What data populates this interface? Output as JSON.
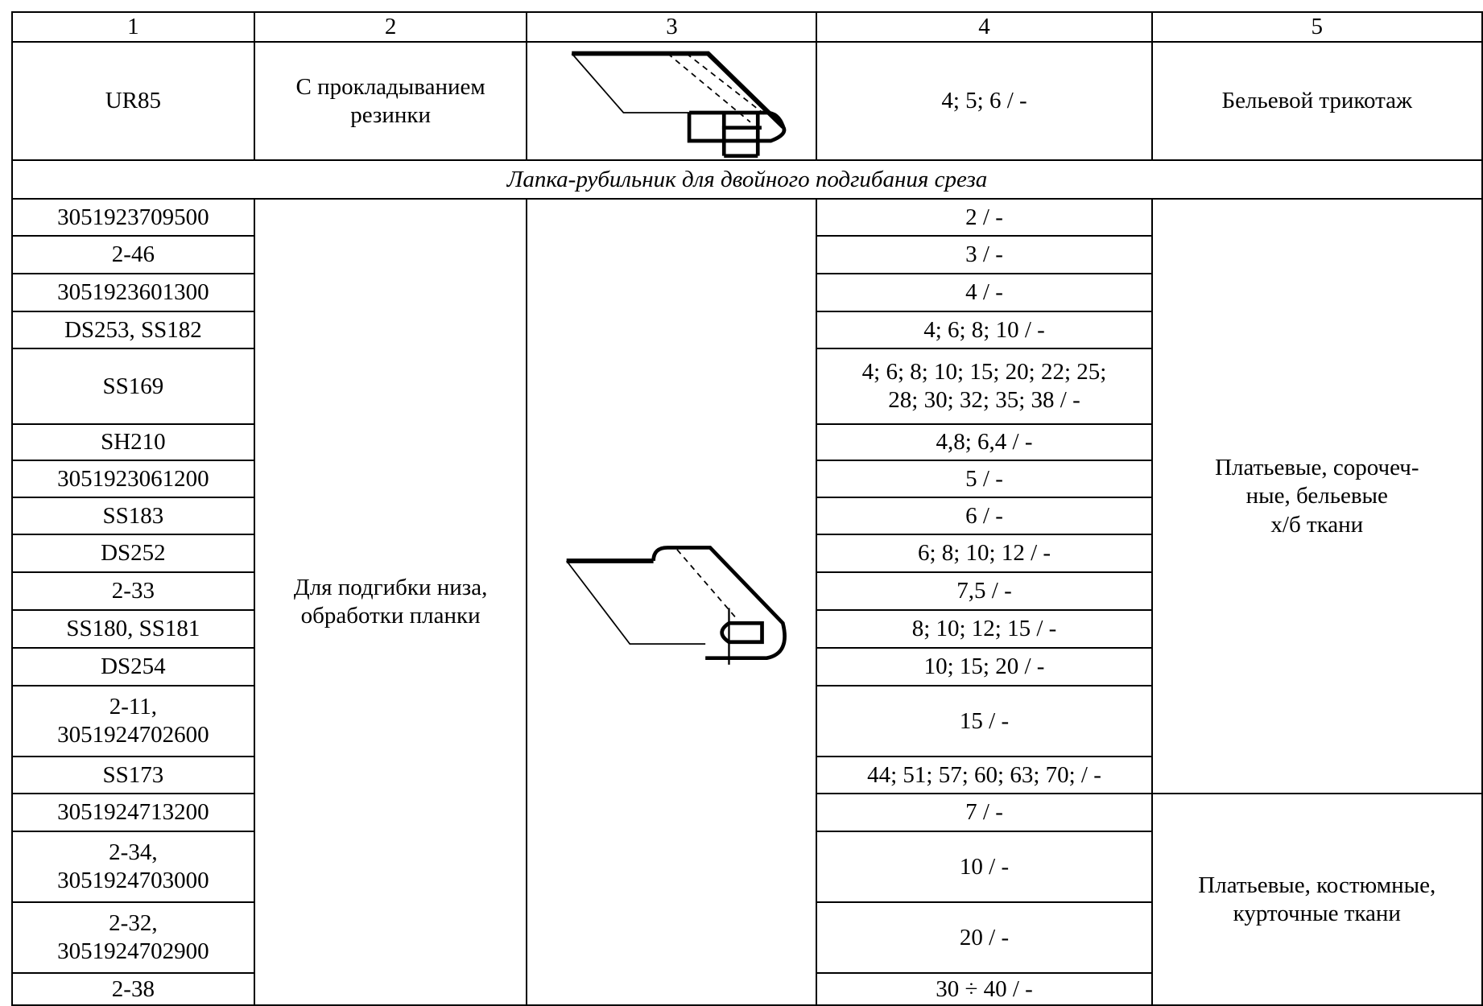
{
  "table": {
    "header": [
      "1",
      "2",
      "3",
      "4",
      "5"
    ],
    "first_row": {
      "code": "UR85",
      "purpose": "С прокладыванием\nрезинки",
      "sizes": "4; 5; 6 / -",
      "fabric": "Бельевой трикотаж"
    },
    "section": "Лапка-рубильник для двойного подгибания среза",
    "section_purpose": "Для подгибки низа,\nобработки планки",
    "fabric_groups": [
      "Платьевые, сорочеч-\nные, бельевые\nх/б ткани",
      "Платьевые, костюмные,\nкурточные ткани"
    ],
    "rows": [
      [
        "3051923709500",
        "2 / -"
      ],
      [
        "2-46",
        "3 / -"
      ],
      [
        "3051923601300",
        "4 / -"
      ],
      [
        "DS253, SS182",
        "4; 6; 8; 10 / -"
      ],
      [
        "SS169",
        "4; 6; 8; 10; 15; 20; 22; 25;\n28; 30; 32; 35; 38 / -"
      ],
      [
        "SH210",
        "4,8; 6,4 / -"
      ],
      [
        "3051923061200",
        "5 / -"
      ],
      [
        "SS183",
        "6 / -"
      ],
      [
        "DS252",
        "6; 8; 10; 12 / -"
      ],
      [
        "2-33",
        "7,5 / -"
      ],
      [
        "SS180, SS181",
        "8; 10; 12; 15 / -"
      ],
      [
        "DS254",
        "10; 15; 20 / -"
      ],
      [
        "2-11,\n3051924702600",
        "15 / -"
      ],
      [
        "SS173",
        "44; 51; 57; 60; 63; 70; / -"
      ],
      [
        "3051924713200",
        "7 / -"
      ],
      [
        "2-34,\n3051924703000",
        "10 / -"
      ],
      [
        "2-32,\n3051924702900",
        "20 / -"
      ],
      [
        "2-38",
        "30 ÷ 40 / -"
      ]
    ]
  }
}
